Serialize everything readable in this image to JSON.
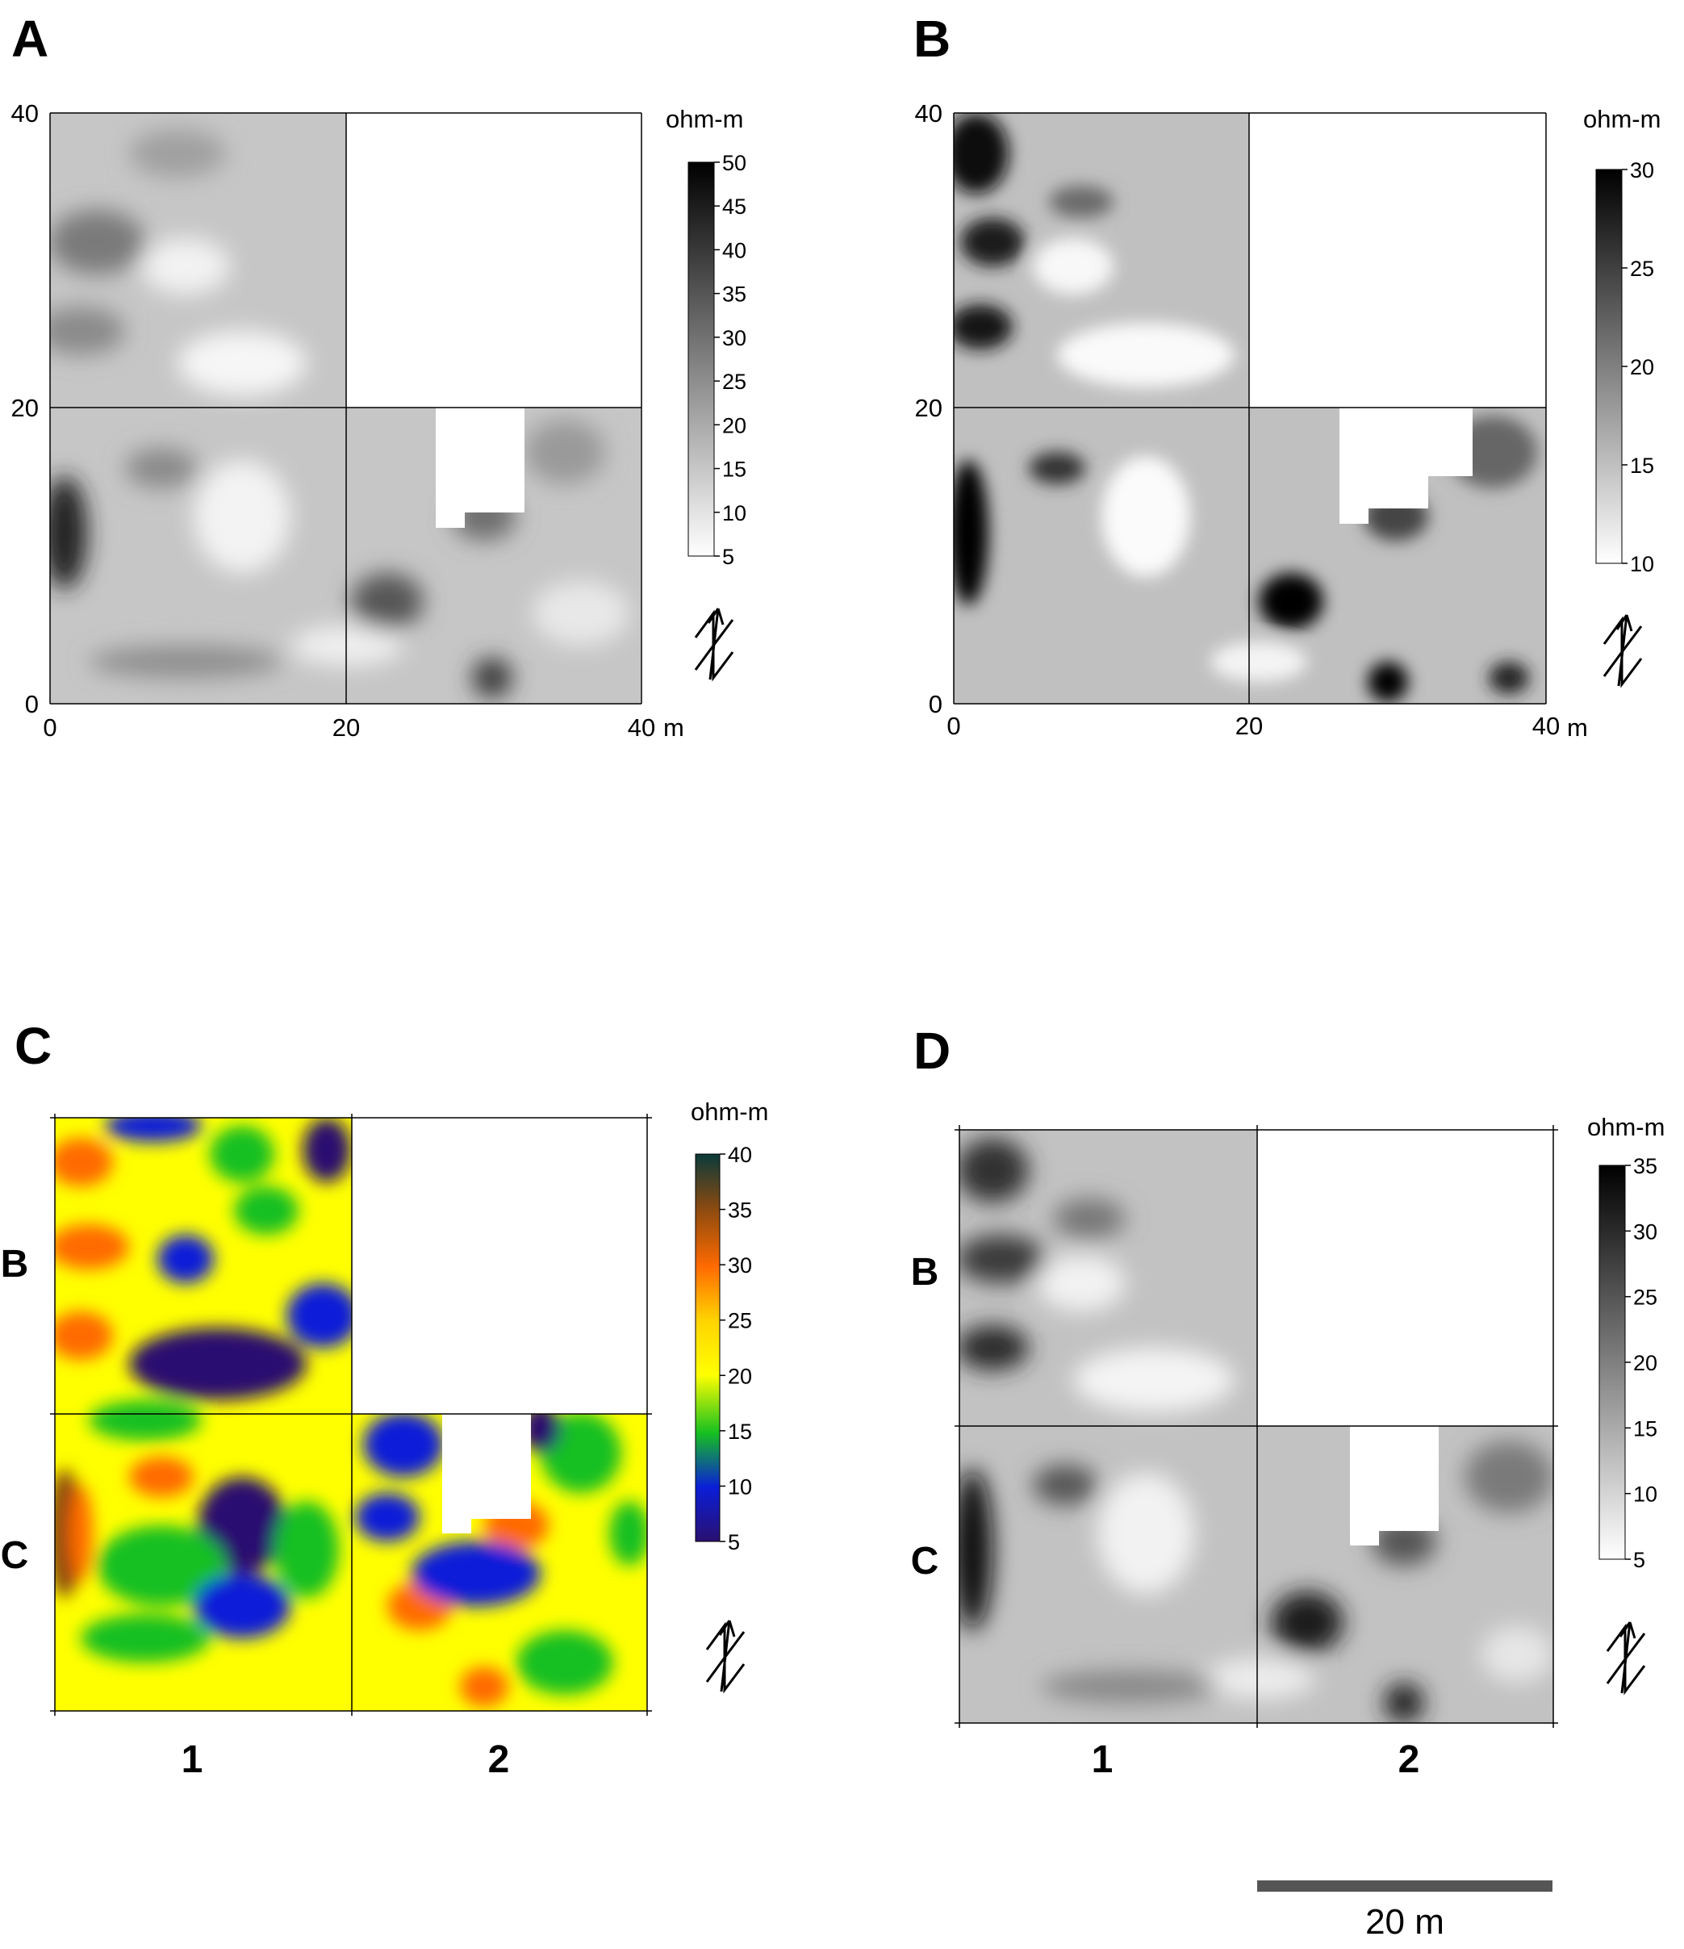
{
  "panels": [
    {
      "id": "A",
      "label": "A",
      "unit_label": "ohm-m",
      "colorscale": "gray",
      "x_ticks": [
        "0",
        "20",
        "40"
      ],
      "x_unit": "m",
      "y_ticks": [
        "0",
        "20",
        "40"
      ],
      "colorbar_ticks": [
        "5",
        "10",
        "15",
        "20",
        "25",
        "30",
        "35",
        "40",
        "45",
        "50"
      ]
    },
    {
      "id": "B",
      "label": "B",
      "unit_label": "ohm-m",
      "colorscale": "gray",
      "x_ticks": [
        "0",
        "20",
        "40"
      ],
      "x_unit": "m",
      "y_ticks": [
        "0",
        "20",
        "40"
      ],
      "colorbar_ticks": [
        "10",
        "15",
        "20",
        "25",
        "30"
      ]
    },
    {
      "id": "C",
      "label": "C",
      "unit_label": "ohm-m",
      "colorscale": "rainbow",
      "column_labels": [
        "1",
        "2"
      ],
      "row_labels": [
        "B",
        "C"
      ],
      "colorbar_ticks": [
        "5",
        "10",
        "15",
        "20",
        "25",
        "30",
        "35",
        "40"
      ]
    },
    {
      "id": "D",
      "label": "D",
      "unit_label": "ohm-m",
      "colorscale": "gray",
      "column_labels": [
        "1",
        "2"
      ],
      "row_labels": [
        "B",
        "C"
      ],
      "colorbar_ticks": [
        "5",
        "10",
        "15",
        "20",
        "25",
        "30",
        "35"
      ]
    }
  ],
  "scale_bar": {
    "label": "20 m",
    "length_m": 20
  },
  "colors": {
    "gray_low": "#ffffff",
    "gray_high": "#000000",
    "rainbow": [
      "#2a1070",
      "#0a1ed8",
      "#16c020",
      "#ffff00",
      "#ff6a00",
      "#8a4a10",
      "#0a3a3a"
    ]
  },
  "chart_data": [
    {
      "type": "heatmap",
      "title": "A",
      "colorbar_label": "ohm-m",
      "xlim": [
        0,
        40
      ],
      "ylim": [
        0,
        40
      ],
      "xlabel": "m",
      "clim": [
        5,
        50
      ],
      "x_ticks": [
        0,
        20,
        40
      ],
      "y_ticks": [
        0,
        20,
        40
      ],
      "surveyed_grids": [
        "0-20 x 0-20",
        "20-40 x 0-20",
        "0-20 x 20-40"
      ],
      "unsurveyed": [
        "20-40 x 20-40",
        "26-32 x 12-20"
      ]
    },
    {
      "type": "heatmap",
      "title": "B",
      "colorbar_label": "ohm-m",
      "xlim": [
        0,
        40
      ],
      "ylim": [
        0,
        40
      ],
      "xlabel": "m",
      "clim": [
        10,
        30
      ],
      "x_ticks": [
        0,
        20,
        40
      ],
      "y_ticks": [
        0,
        20,
        40
      ]
    },
    {
      "type": "heatmap",
      "title": "C",
      "colorbar_label": "ohm-m",
      "clim": [
        5,
        40
      ],
      "columns": [
        "1",
        "2"
      ],
      "rows": [
        "B",
        "C"
      ]
    },
    {
      "type": "heatmap",
      "title": "D",
      "colorbar_label": "ohm-m",
      "clim": [
        5,
        35
      ],
      "columns": [
        "1",
        "2"
      ],
      "rows": [
        "B",
        "C"
      ]
    }
  ]
}
